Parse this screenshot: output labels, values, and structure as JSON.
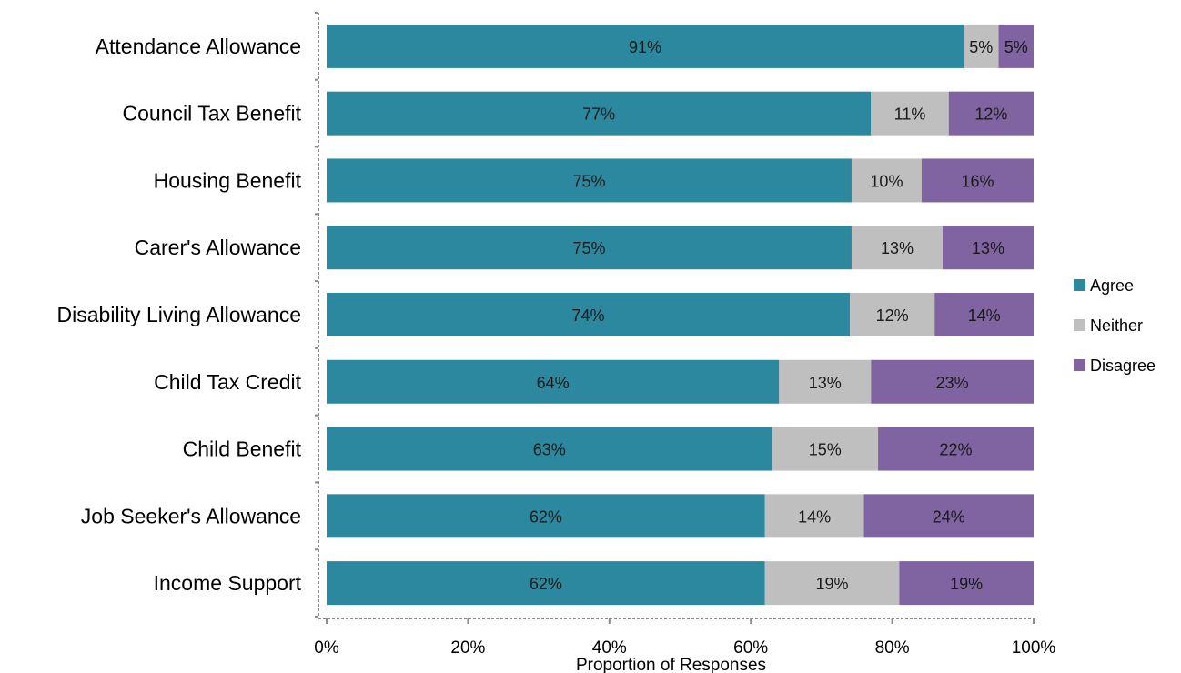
{
  "chart_data": {
    "type": "bar",
    "orientation": "horizontal",
    "stacked": true,
    "categories": [
      "Attendance Allowance",
      "Council Tax Benefit",
      "Housing Benefit",
      "Carer's Allowance",
      "Disability Living Allowance",
      "Child Tax Credit",
      "Child Benefit",
      "Job Seeker's Allowance",
      "Income Support"
    ],
    "series": [
      {
        "name": "Agree",
        "color": "#2b889e",
        "values": [
          91,
          77,
          75,
          75,
          74,
          64,
          63,
          62,
          62
        ],
        "labels": [
          "91%",
          "77%",
          "75%",
          "75%",
          "74%",
          "64%",
          "63%",
          "62%",
          "62%"
        ]
      },
      {
        "name": "Neither",
        "color": "#bfbfbf",
        "values": [
          5,
          11,
          10,
          13,
          12,
          13,
          15,
          14,
          19
        ],
        "labels": [
          "5%",
          "11%",
          "10%",
          "13%",
          "12%",
          "13%",
          "15%",
          "14%",
          "19%"
        ]
      },
      {
        "name": "Disagree",
        "color": "#8064a2",
        "values": [
          5,
          12,
          16,
          13,
          14,
          23,
          22,
          24,
          19
        ],
        "labels": [
          "5%",
          "12%",
          "16%",
          "13%",
          "14%",
          "23%",
          "22%",
          "24%",
          "19%"
        ]
      }
    ],
    "xlim": [
      0,
      100
    ],
    "x_ticks": [
      "0%",
      "20%",
      "40%",
      "60%",
      "80%",
      "100%"
    ],
    "xlabel": "Proportion of Responses",
    "legend_position": "right",
    "grid": false
  }
}
